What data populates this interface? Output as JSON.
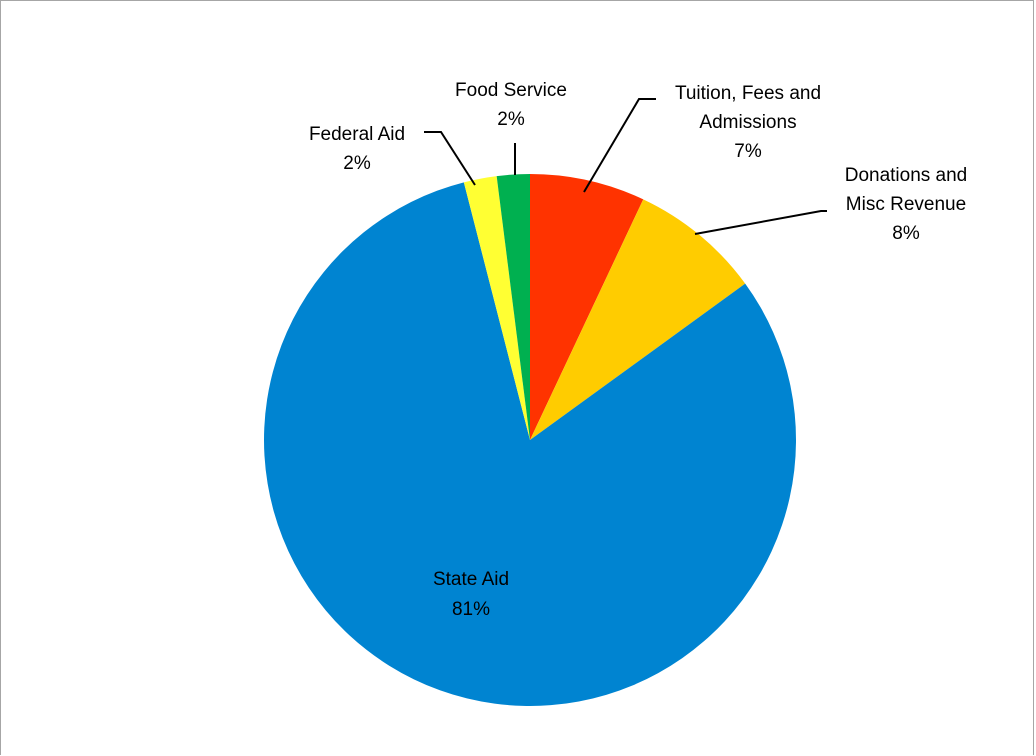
{
  "chart_data": {
    "type": "pie",
    "title": "",
    "start_angle_deg": 0,
    "direction": "clockwise",
    "slices": [
      {
        "name": "Tuition, Fees and Admissions",
        "value": 7,
        "label_lines": [
          "Tuition, Fees and",
          "Admissions",
          "7%"
        ],
        "color": "#ff3300"
      },
      {
        "name": "Donations and Misc Revenue",
        "value": 8,
        "label_lines": [
          "Donations and",
          "Misc Revenue",
          "8%"
        ],
        "color": "#ffcc00"
      },
      {
        "name": "State Aid",
        "value": 81,
        "label_lines": [
          "State Aid",
          "81%"
        ],
        "color": "#0084d1"
      },
      {
        "name": "Federal Aid",
        "value": 2,
        "label_lines": [
          "Federal Aid",
          "2%"
        ],
        "color": "#ffff33"
      },
      {
        "name": "Food Service",
        "value": 2,
        "label_lines": [
          "Food Service",
          "2%"
        ],
        "color": "#00b050"
      }
    ]
  }
}
